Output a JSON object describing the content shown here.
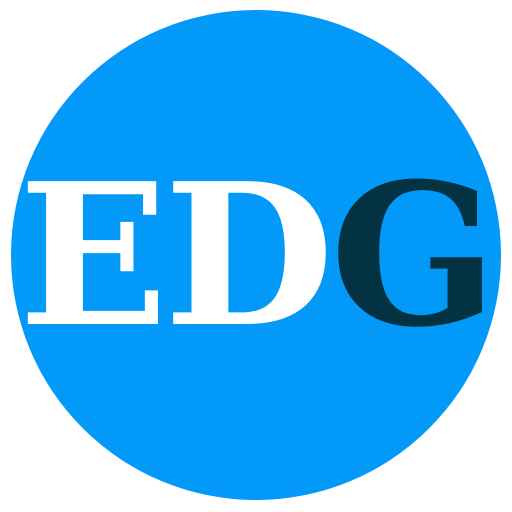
{
  "logo": {
    "letters": {
      "first": "E",
      "second": "D",
      "third": "G"
    },
    "colors": {
      "circle": "#0399F8",
      "light_letters": "#FFFFFF",
      "dark_letter": "#033342",
      "background": "#FFFFFF"
    }
  }
}
